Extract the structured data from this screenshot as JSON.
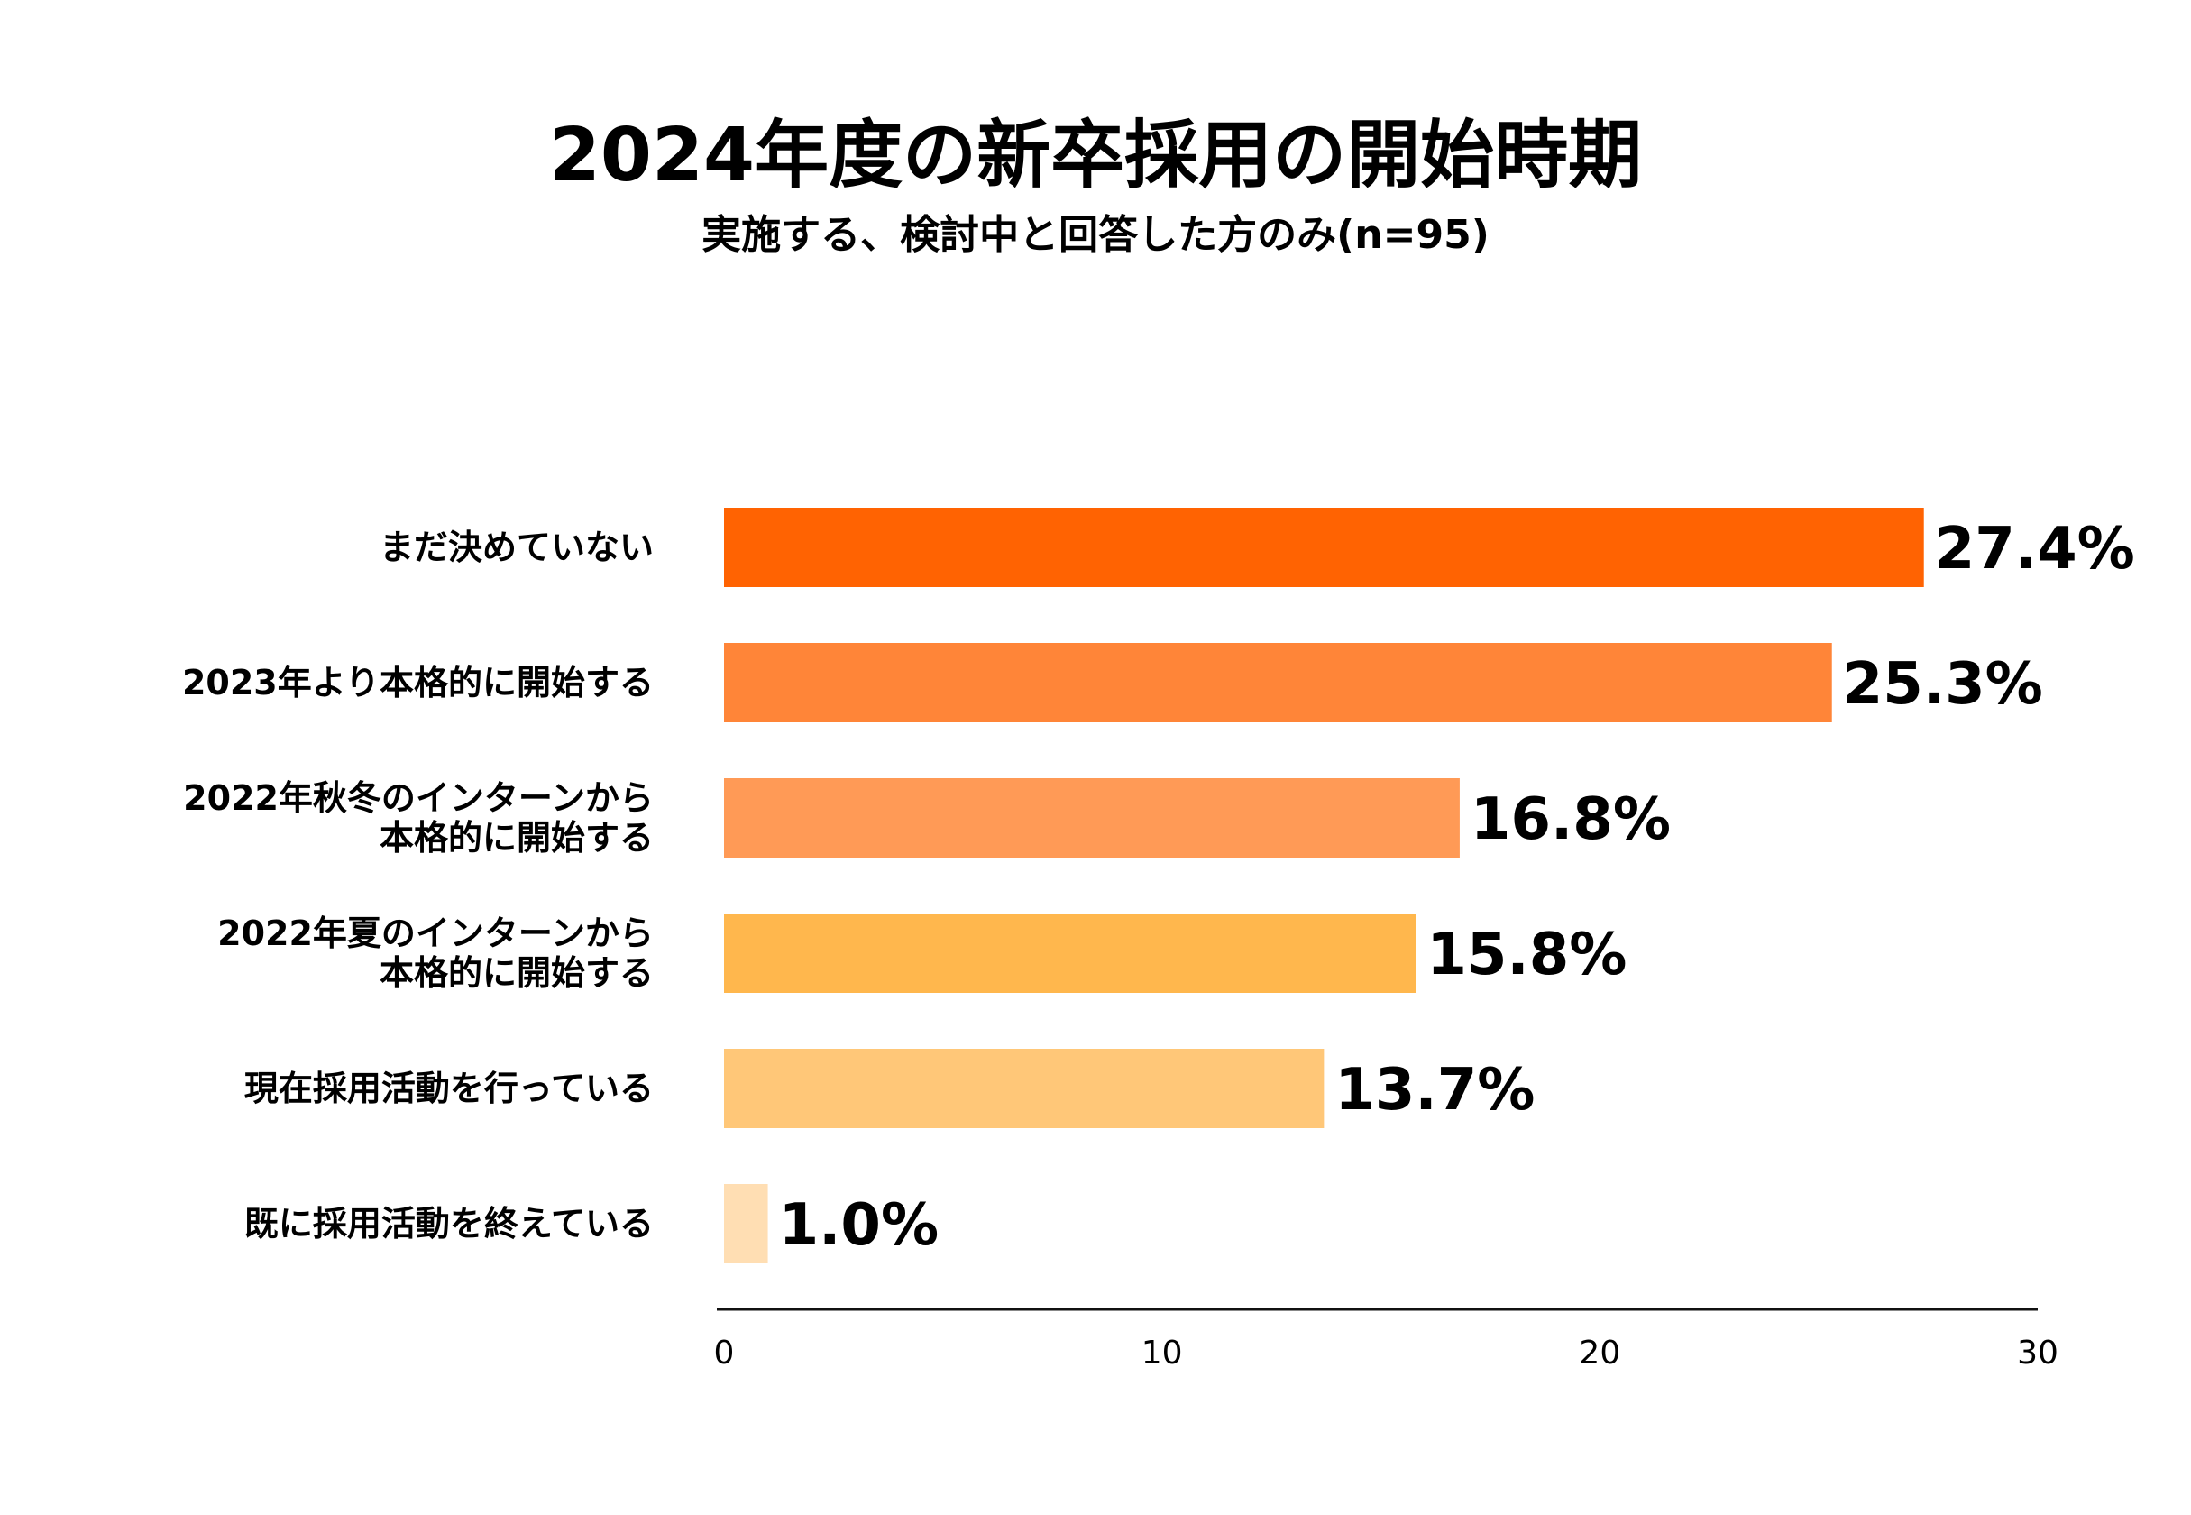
{
  "chart_data": {
    "type": "bar",
    "orientation": "horizontal",
    "title": "2024年度の新卒採用の開始時期",
    "subtitle": "実施する、検討中と回答した方のみ(n=95)",
    "xlabel": "",
    "ylabel": "",
    "xlim": [
      0,
      30
    ],
    "ticks": [
      "0",
      "10",
      "20",
      "30"
    ],
    "tick_values": [
      0,
      10,
      20,
      30
    ],
    "grid": false,
    "legend": "none",
    "categories": [
      [
        "まだ決めていない"
      ],
      [
        "2023年より本格的に開始する"
      ],
      [
        "2022年秋冬のインターンから",
        "本格的に開始する"
      ],
      [
        "2022年夏のインターンから",
        "本格的に開始する"
      ],
      [
        "現在採用活動を行っている"
      ],
      [
        "既に採用活動を終えている"
      ]
    ],
    "values": [
      27.4,
      25.3,
      16.8,
      15.8,
      13.7,
      1.0
    ],
    "value_labels": [
      "27.4%",
      "25.3%",
      "16.8%",
      "15.8%",
      "13.7%",
      "1.0%"
    ],
    "colors": [
      "#ff6302",
      "#ff8538",
      "#ff9a56",
      "#ffb74d",
      "#ffc778",
      "#ffdeb3"
    ]
  }
}
